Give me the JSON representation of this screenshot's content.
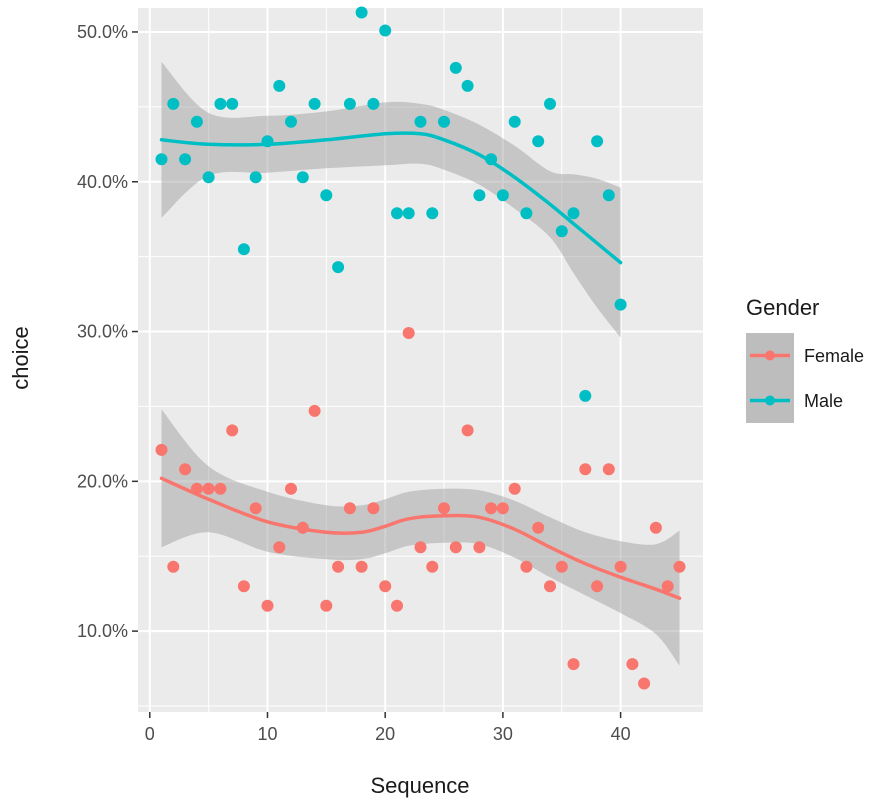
{
  "chart_data": {
    "type": "scatter",
    "xlabel": "Sequence",
    "ylabel": "choice",
    "xlim": [
      -1,
      47
    ],
    "ylim": [
      4.6,
      51.6
    ],
    "x_ticks": [
      0,
      10,
      20,
      30,
      40
    ],
    "x_tick_labels": [
      "0",
      "10",
      "20",
      "30",
      "40"
    ],
    "y_ticks": [
      10,
      20,
      30,
      40,
      50
    ],
    "y_tick_labels": [
      "10.0%",
      "20.0%",
      "30.0%",
      "40.0%",
      "50.0%"
    ],
    "grid": true,
    "legend": {
      "title": "Gender",
      "position": "right",
      "entries": [
        "Female",
        "Male"
      ]
    },
    "series": [
      {
        "name": "Female",
        "color": "#F8766D",
        "points": [
          [
            1,
            22.1
          ],
          [
            2,
            14.3
          ],
          [
            3,
            20.8
          ],
          [
            4,
            19.5
          ],
          [
            5,
            19.5
          ],
          [
            6,
            19.5
          ],
          [
            7,
            23.4
          ],
          [
            8,
            13.0
          ],
          [
            9,
            18.2
          ],
          [
            10,
            11.7
          ],
          [
            11,
            15.6
          ],
          [
            12,
            19.5
          ],
          [
            13,
            16.9
          ],
          [
            14,
            24.7
          ],
          [
            15,
            11.7
          ],
          [
            16,
            14.3
          ],
          [
            17,
            18.2
          ],
          [
            18,
            14.3
          ],
          [
            19,
            18.2
          ],
          [
            20,
            13.0
          ],
          [
            21,
            11.7
          ],
          [
            22,
            29.9
          ],
          [
            23,
            15.6
          ],
          [
            24,
            14.3
          ],
          [
            25,
            18.2
          ],
          [
            26,
            15.6
          ],
          [
            27,
            23.4
          ],
          [
            28,
            15.6
          ],
          [
            29,
            18.2
          ],
          [
            30,
            18.2
          ],
          [
            31,
            19.5
          ],
          [
            32,
            14.3
          ],
          [
            33,
            16.9
          ],
          [
            34,
            13.0
          ],
          [
            35,
            14.3
          ],
          [
            36,
            7.8
          ],
          [
            37,
            20.8
          ],
          [
            38,
            13.0
          ],
          [
            39,
            20.8
          ],
          [
            40,
            14.3
          ],
          [
            41,
            7.8
          ],
          [
            42,
            6.5
          ],
          [
            43,
            16.9
          ],
          [
            44,
            13.0
          ],
          [
            45,
            14.3
          ]
        ],
        "smooth": [
          [
            1,
            20.2
          ],
          [
            5,
            18.8
          ],
          [
            10,
            17.3
          ],
          [
            15,
            16.6
          ],
          [
            18,
            16.6
          ],
          [
            20,
            17.0
          ],
          [
            22,
            17.5
          ],
          [
            25,
            17.7
          ],
          [
            28,
            17.6
          ],
          [
            31,
            16.8
          ],
          [
            34,
            15.6
          ],
          [
            37,
            14.5
          ],
          [
            40,
            13.6
          ],
          [
            43,
            12.8
          ],
          [
            45,
            12.2
          ]
        ],
        "band_upper": [
          [
            1,
            24.8
          ],
          [
            5,
            21.0
          ],
          [
            10,
            19.3
          ],
          [
            15,
            18.4
          ],
          [
            18,
            18.4
          ],
          [
            20,
            18.8
          ],
          [
            22,
            19.3
          ],
          [
            25,
            19.5
          ],
          [
            28,
            19.4
          ],
          [
            31,
            18.7
          ],
          [
            34,
            17.6
          ],
          [
            37,
            16.6
          ],
          [
            40,
            16.0
          ],
          [
            43,
            15.8
          ],
          [
            45,
            16.7
          ]
        ],
        "band_lower": [
          [
            1,
            15.6
          ],
          [
            5,
            16.6
          ],
          [
            10,
            15.3
          ],
          [
            15,
            14.8
          ],
          [
            18,
            14.8
          ],
          [
            20,
            15.2
          ],
          [
            22,
            15.7
          ],
          [
            25,
            15.9
          ],
          [
            28,
            15.8
          ],
          [
            31,
            14.9
          ],
          [
            34,
            13.6
          ],
          [
            37,
            12.4
          ],
          [
            40,
            11.2
          ],
          [
            43,
            9.8
          ],
          [
            45,
            7.7
          ]
        ]
      },
      {
        "name": "Male",
        "color": "#00BFC4",
        "points": [
          [
            1,
            41.5
          ],
          [
            2,
            45.2
          ],
          [
            3,
            41.5
          ],
          [
            4,
            44.0
          ],
          [
            5,
            40.3
          ],
          [
            6,
            45.2
          ],
          [
            7,
            45.2
          ],
          [
            8,
            35.5
          ],
          [
            9,
            40.3
          ],
          [
            10,
            42.7
          ],
          [
            11,
            46.4
          ],
          [
            12,
            44.0
          ],
          [
            13,
            40.3
          ],
          [
            14,
            45.2
          ],
          [
            15,
            39.1
          ],
          [
            16,
            34.3
          ],
          [
            17,
            45.2
          ],
          [
            18,
            51.3
          ],
          [
            19,
            45.2
          ],
          [
            20,
            50.1
          ],
          [
            21,
            37.9
          ],
          [
            22,
            37.9
          ],
          [
            23,
            44.0
          ],
          [
            24,
            37.9
          ],
          [
            25,
            44.0
          ],
          [
            26,
            47.6
          ],
          [
            27,
            46.4
          ],
          [
            28,
            39.1
          ],
          [
            29,
            41.5
          ],
          [
            30,
            39.1
          ],
          [
            31,
            44.0
          ],
          [
            32,
            37.9
          ],
          [
            33,
            42.7
          ],
          [
            34,
            45.2
          ],
          [
            35,
            36.7
          ],
          [
            36,
            37.9
          ],
          [
            37,
            25.7
          ],
          [
            38,
            42.7
          ],
          [
            39,
            39.1
          ],
          [
            40,
            31.8
          ]
        ],
        "smooth": [
          [
            1,
            42.8
          ],
          [
            5,
            42.5
          ],
          [
            10,
            42.5
          ],
          [
            15,
            42.8
          ],
          [
            20,
            43.2
          ],
          [
            23,
            43.2
          ],
          [
            25,
            42.8
          ],
          [
            28,
            41.8
          ],
          [
            31,
            40.3
          ],
          [
            34,
            38.5
          ],
          [
            36,
            37.2
          ],
          [
            38,
            35.9
          ],
          [
            40,
            34.6
          ]
        ],
        "band_upper": [
          [
            1,
            48.0
          ],
          [
            5,
            44.6
          ],
          [
            10,
            44.4
          ],
          [
            15,
            44.7
          ],
          [
            20,
            45.3
          ],
          [
            23,
            45.2
          ],
          [
            25,
            44.8
          ],
          [
            28,
            43.8
          ],
          [
            31,
            42.4
          ],
          [
            34,
            40.7
          ],
          [
            36,
            40.5
          ],
          [
            38,
            40.2
          ],
          [
            40,
            39.6
          ]
        ],
        "band_lower": [
          [
            1,
            37.6
          ],
          [
            5,
            40.4
          ],
          [
            10,
            40.6
          ],
          [
            15,
            40.9
          ],
          [
            20,
            41.1
          ],
          [
            23,
            41.2
          ],
          [
            25,
            40.8
          ],
          [
            28,
            39.8
          ],
          [
            31,
            38.2
          ],
          [
            34,
            36.3
          ],
          [
            36,
            33.9
          ],
          [
            38,
            31.6
          ],
          [
            40,
            29.6
          ]
        ]
      }
    ]
  }
}
